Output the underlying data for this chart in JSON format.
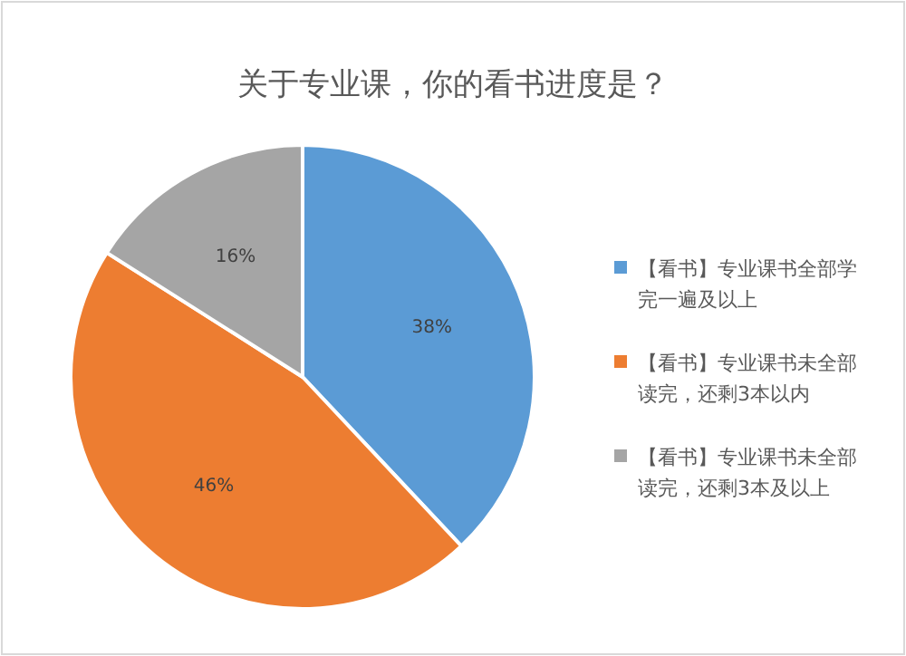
{
  "chart_data": {
    "type": "pie",
    "title": "关于专业课，你的看书进度是？",
    "categories": [
      "【看书】专业课书全部学完一遍及以上",
      "【看书】专业课书未全部读完，还剩3本以内",
      "【看书】专业课书未全部读完，还剩3本及以上"
    ],
    "values": [
      38,
      46,
      16
    ],
    "colors": [
      "#5b9bd5",
      "#ed7d31",
      "#a5a5a5"
    ],
    "value_labels": [
      "38%",
      "46%",
      "16%"
    ],
    "legend": "right"
  }
}
